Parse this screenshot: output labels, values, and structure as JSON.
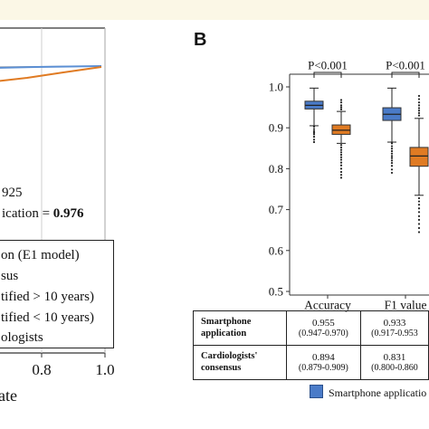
{
  "panel_b_label": "B",
  "roc_panel": {
    "tick_labels": [
      "0.8",
      "1.0"
    ],
    "xlabel_fragment": "ate",
    "auc_lines": [
      {
        "text": "925",
        "bold_value": ""
      },
      {
        "text": "ication = ",
        "bold_value": "0.976"
      }
    ],
    "legend": [
      "on (E1 model)",
      "sus",
      "tified > 10 years)",
      "tified < 10 years)",
      "ologists"
    ],
    "line_colors": {
      "blue": "#5b8fd4",
      "orange": "#e07b23",
      "gray": "#9a9a9a"
    }
  },
  "chart_data": [
    {
      "type": "box",
      "ylim": [
        0.5,
        1.0
      ],
      "y_ticks": [
        "0.5",
        "0.6",
        "0.7",
        "0.8",
        "0.9",
        "1.0"
      ],
      "categories": [
        "Accuracy",
        "F1 value"
      ],
      "annotations": [
        "P<0.001",
        "P<0.001"
      ],
      "series": [
        {
          "name": "Smartphone application",
          "color": "#4a7bc8",
          "boxes": [
            {
              "whisker_low": 0.905,
              "q1": 0.946,
              "median": 0.955,
              "q3": 0.965,
              "whisker_high": 0.997
            },
            {
              "whisker_low": 0.865,
              "q1": 0.918,
              "median": 0.933,
              "q3": 0.949,
              "whisker_high": 0.997
            }
          ],
          "outliers": [
            [
              0.903,
              0.897,
              0.892,
              0.888,
              0.884,
              0.878,
              0.871,
              0.865
            ],
            [
              0.862,
              0.855,
              0.849,
              0.843,
              0.837,
              0.831,
              0.826,
              0.82,
              0.814,
              0.807,
              0.798,
              0.79
            ]
          ]
        },
        {
          "name": "Cardiologists' consensus",
          "color": "#e07b23",
          "boxes": [
            {
              "whisker_low": 0.862,
              "q1": 0.884,
              "median": 0.894,
              "q3": 0.907,
              "whisker_high": 0.94
            },
            {
              "whisker_low": 0.735,
              "q1": 0.806,
              "median": 0.831,
              "q3": 0.852,
              "whisker_high": 0.923
            }
          ],
          "outliers": [
            [
              0.968,
              0.962,
              0.955,
              0.95,
              0.945,
              0.858,
              0.852,
              0.846,
              0.84,
              0.834,
              0.828,
              0.822,
              0.815,
              0.808,
              0.8,
              0.792,
              0.785,
              0.778
            ],
            [
              0.978,
              0.97,
              0.962,
              0.955,
              0.948,
              0.942,
              0.936,
              0.93,
              0.728,
              0.72,
              0.712,
              0.703,
              0.694,
              0.684,
              0.675,
              0.665,
              0.655,
              0.645
            ]
          ]
        }
      ]
    }
  ],
  "table": {
    "rows": [
      {
        "label_line1": "Smartphone",
        "label_line2": "application",
        "cells": [
          {
            "value": "0.955",
            "ci": "(0.947-0.970)"
          },
          {
            "value": "0.933",
            "ci": "(0.917-0.953"
          }
        ]
      },
      {
        "label_line1": "Cardiologists'",
        "label_line2": "consensus",
        "cells": [
          {
            "value": "0.894",
            "ci": "(0.879-0.909)"
          },
          {
            "value": "0.831",
            "ci": "(0.800-0.860"
          }
        ]
      }
    ]
  },
  "bottom_legend": {
    "label": "Smartphone applicatio"
  }
}
